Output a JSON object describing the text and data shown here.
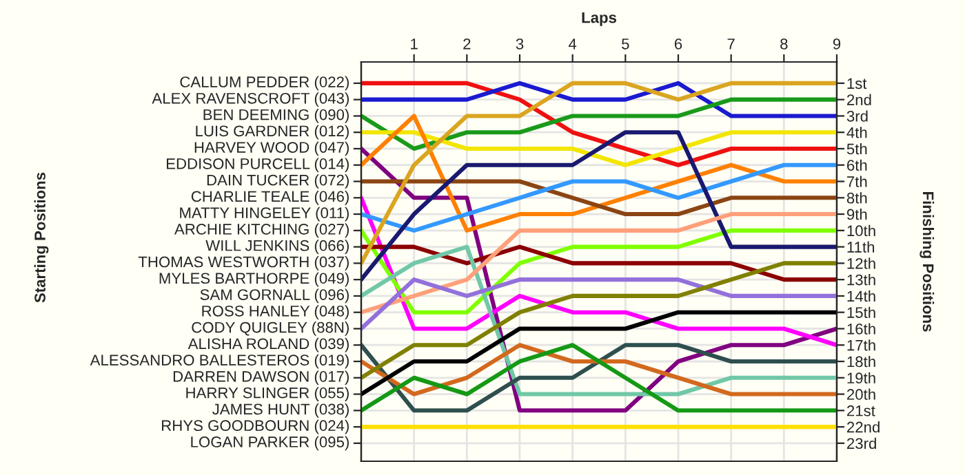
{
  "chart_data": {
    "type": "line",
    "xlabel": "Laps",
    "y2label": "Finishing Positions",
    "xlim": [
      0,
      9
    ],
    "xticks": [
      1,
      2,
      3,
      4,
      5,
      6,
      7,
      8,
      9
    ],
    "annotations": [
      "CALLUM PEDDER (022)",
      "ALEX RAVENSCROFT (043)",
      "BEN DEEMING (090)",
      "LUIS GARDNER (012)",
      "HARVEY WOOD (047)",
      "EDDISON PURCELL (014)",
      "DAIN TUCKER (072)",
      "CHARLIE TEALE (046)",
      "MATTY HINGELEY (011)",
      "ARCHIE KITCHING (027)",
      "WILL JENKINS (066)",
      "THOMAS WESTWORTH (037)",
      "MYLES BARTHORPE (049)",
      "SAM GORNALL (096)",
      "ROSS HANLEY (048)",
      "CODY QUIGLEY (88N)",
      "ALISHA ROLAND (039)",
      "ALESSANDRO BALLESTEROS (019)",
      "DARREN DAWSON (017)",
      "HARRY SLINGER (055)",
      "JAMES HUNT (038)",
      "RHYS GOODBOURN (024)",
      "LOGAN PARKER (095)",
      "Starting Positions"
    ],
    "y2lim": [
      24.1,
      -0.3
    ],
    "y2ticks": [
      {
        "value": 1,
        "label": "1st"
      },
      {
        "value": 2,
        "label": "2nd"
      },
      {
        "value": 3,
        "label": "3rd"
      },
      {
        "value": 4,
        "label": "4th"
      },
      {
        "value": 5,
        "label": "5th"
      },
      {
        "value": 6,
        "label": "6th"
      },
      {
        "value": 7,
        "label": "7th"
      },
      {
        "value": 8,
        "label": "8th"
      },
      {
        "value": 9,
        "label": "9th"
      },
      {
        "value": 10,
        "label": "10th"
      },
      {
        "value": 11,
        "label": "11th"
      },
      {
        "value": 12,
        "label": "12th"
      },
      {
        "value": 13,
        "label": "13th"
      },
      {
        "value": 14,
        "label": "14th"
      },
      {
        "value": 15,
        "label": "15th"
      },
      {
        "value": 16,
        "label": "16th"
      },
      {
        "value": 17,
        "label": "17th"
      },
      {
        "value": 18,
        "label": "18th"
      },
      {
        "value": 19,
        "label": "19th"
      },
      {
        "value": 20,
        "label": "20th"
      },
      {
        "value": 21,
        "label": "21st"
      },
      {
        "value": 22,
        "label": "22nd"
      },
      {
        "value": 23,
        "label": "23rd"
      }
    ],
    "grid": true,
    "marker": "none",
    "line_style": "solid",
    "x": [
      0,
      1,
      2,
      3,
      4,
      5,
      6,
      7,
      8,
      9
    ],
    "series": [
      {
        "axis": "y2",
        "color": "#ee1111",
        "values": [
          1,
          1,
          1,
          2,
          4,
          5,
          6,
          5,
          5,
          5
        ]
      },
      {
        "axis": "y2",
        "color": "#1a1ad0",
        "values": [
          2,
          2,
          2,
          1,
          2,
          2,
          1,
          3,
          3,
          3
        ]
      },
      {
        "axis": "y2",
        "color": "#1a9a1a",
        "values": [
          3,
          5,
          4,
          4,
          3,
          3,
          3,
          2,
          2,
          2
        ]
      },
      {
        "axis": "y2",
        "color": "#f2e600",
        "values": [
          4,
          4,
          5,
          5,
          5,
          6,
          5,
          4,
          4,
          4
        ]
      },
      {
        "axis": "y2",
        "color": "#800080",
        "values": [
          5,
          8,
          8,
          21,
          21,
          21,
          18,
          17,
          17,
          16
        ]
      },
      {
        "axis": "y2",
        "color": "#ff8000",
        "values": [
          6,
          3,
          10,
          9,
          9,
          8,
          7,
          6,
          7,
          7
        ]
      },
      {
        "axis": "y2",
        "color": "#8b4513",
        "values": [
          7,
          7,
          7,
          7,
          8,
          9,
          9,
          8,
          8,
          8
        ]
      },
      {
        "axis": "y2",
        "color": "#ff00ff",
        "values": [
          8,
          16,
          16,
          14,
          15,
          15,
          16,
          16,
          16,
          17
        ]
      },
      {
        "axis": "y2",
        "color": "#3399ff",
        "values": [
          9,
          10,
          9,
          8,
          7,
          7,
          8,
          7,
          6,
          6
        ]
      },
      {
        "axis": "y2",
        "color": "#80ff00",
        "values": [
          10,
          15,
          15,
          12,
          11,
          11,
          11,
          10,
          10,
          10
        ]
      },
      {
        "axis": "y2",
        "color": "#8b0000",
        "values": [
          11,
          11,
          12,
          11,
          12,
          12,
          12,
          12,
          13,
          13
        ]
      },
      {
        "axis": "y2",
        "color": "#daa520",
        "values": [
          12,
          6,
          3,
          3,
          1,
          1,
          2,
          1,
          1,
          1
        ]
      },
      {
        "axis": "y2",
        "color": "#191970",
        "values": [
          13,
          9,
          6,
          6,
          6,
          4,
          4,
          11,
          11,
          11
        ]
      },
      {
        "axis": "y2",
        "color": "#70c8a8",
        "values": [
          14,
          12,
          11,
          20,
          20,
          20,
          20,
          19,
          19,
          19
        ]
      },
      {
        "axis": "y2",
        "color": "#ffa07a",
        "values": [
          15,
          14,
          13,
          10,
          10,
          10,
          10,
          9,
          9,
          9
        ]
      },
      {
        "axis": "y2",
        "color": "#9370db",
        "values": [
          16,
          13,
          14,
          13,
          13,
          13,
          13,
          14,
          14,
          14
        ]
      },
      {
        "axis": "y2",
        "color": "#2f4f4f",
        "values": [
          17,
          21,
          21,
          19,
          19,
          17,
          17,
          18,
          18,
          18
        ]
      },
      {
        "axis": "y2",
        "color": "#d2691e",
        "values": [
          18,
          20,
          19,
          17,
          18,
          18,
          19,
          20,
          20,
          20
        ]
      },
      {
        "axis": "y2",
        "color": "#808000",
        "values": [
          19,
          17,
          17,
          15,
          14,
          14,
          14,
          13,
          12,
          12
        ]
      },
      {
        "axis": "y2",
        "color": "#000000",
        "values": [
          20,
          18,
          18,
          16,
          16,
          16,
          15,
          15,
          15,
          15
        ]
      },
      {
        "axis": "y2",
        "color": "#159915",
        "values": [
          21,
          19,
          20,
          18,
          17,
          19,
          21,
          21,
          21,
          21
        ]
      },
      {
        "axis": "y2",
        "color": "#ffe000",
        "values": [
          22,
          22,
          22,
          22,
          22,
          22,
          22,
          22,
          22,
          22
        ]
      }
    ]
  }
}
